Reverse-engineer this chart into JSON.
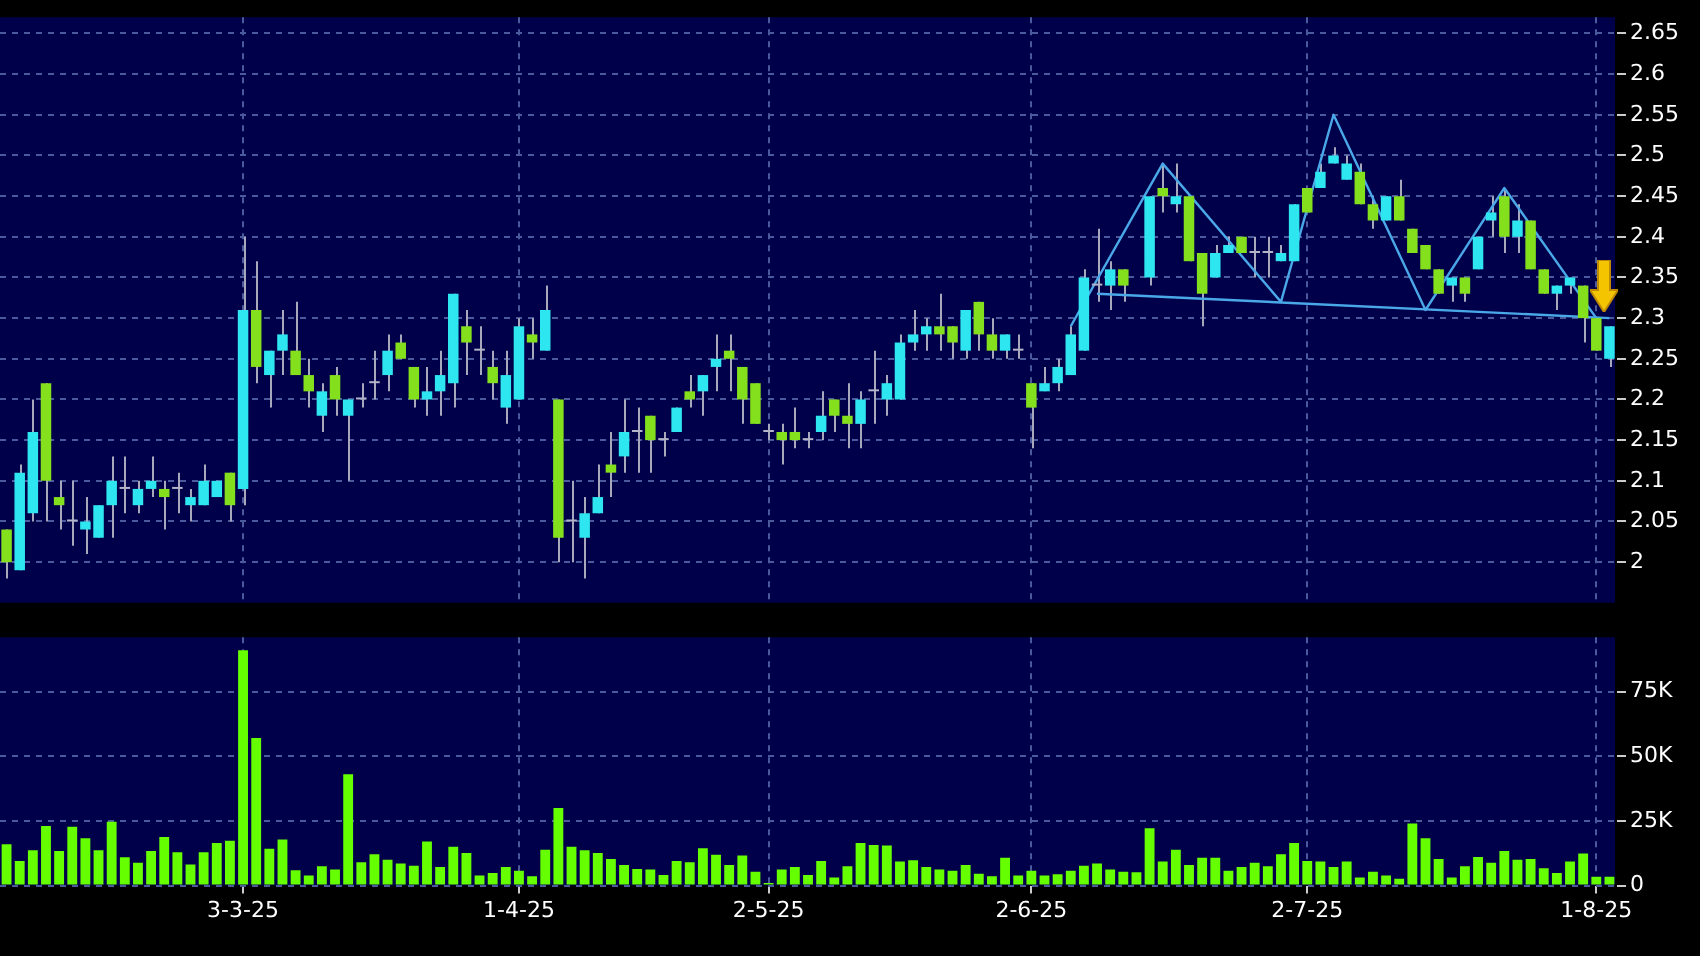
{
  "chart_data": [
    {
      "type": "candlestick",
      "categories": [
        null,
        null,
        null,
        null,
        null,
        null,
        null,
        null,
        null,
        null,
        null,
        null,
        null,
        null,
        null,
        null,
        null,
        null,
        null,
        null,
        null,
        null,
        null,
        null,
        null,
        null,
        null,
        null,
        null,
        null,
        null,
        null,
        null,
        null,
        null,
        null,
        null,
        null,
        null,
        null,
        null,
        null,
        null,
        null,
        null,
        null,
        null,
        null,
        null,
        null,
        null,
        null,
        null,
        null,
        null,
        null,
        null,
        null,
        null,
        null,
        null,
        null,
        null,
        null,
        null,
        null,
        null,
        null,
        null,
        null,
        null,
        null,
        null,
        null,
        null,
        null,
        null,
        null,
        null,
        null,
        null,
        null,
        null,
        null,
        null,
        null,
        null,
        null,
        null,
        null,
        null,
        null,
        null,
        null,
        null,
        null,
        null,
        null,
        null,
        null,
        null,
        null,
        null,
        null,
        null,
        null,
        null,
        null,
        null,
        null,
        null,
        null,
        null,
        null,
        null,
        null,
        null,
        null,
        null,
        null,
        null,
        null,
        null
      ],
      "ohlc": [
        [
          2.04,
          2.04,
          1.98,
          2.0
        ],
        [
          1.99,
          2.12,
          1.99,
          2.11
        ],
        [
          2.06,
          2.2,
          2.05,
          2.16
        ],
        [
          2.22,
          2.22,
          2.05,
          2.1
        ],
        [
          2.08,
          2.1,
          2.04,
          2.07
        ],
        [
          2.05,
          2.1,
          2.02,
          2.05
        ],
        [
          2.04,
          2.08,
          2.01,
          2.05
        ],
        [
          2.03,
          2.07,
          2.03,
          2.07
        ],
        [
          2.07,
          2.13,
          2.03,
          2.1
        ],
        [
          2.09,
          2.13,
          2.06,
          2.09
        ],
        [
          2.07,
          2.1,
          2.06,
          2.09
        ],
        [
          2.09,
          2.13,
          2.08,
          2.1
        ],
        [
          2.09,
          2.1,
          2.04,
          2.08
        ],
        [
          2.09,
          2.11,
          2.06,
          2.09
        ],
        [
          2.07,
          2.09,
          2.05,
          2.08
        ],
        [
          2.07,
          2.12,
          2.07,
          2.1
        ],
        [
          2.08,
          2.1,
          2.08,
          2.1
        ],
        [
          2.11,
          2.11,
          2.05,
          2.07
        ],
        [
          2.09,
          2.4,
          2.07,
          2.31
        ],
        [
          2.31,
          2.37,
          2.22,
          2.24
        ],
        [
          2.23,
          2.26,
          2.19,
          2.26
        ],
        [
          2.26,
          2.31,
          2.23,
          2.28
        ],
        [
          2.26,
          2.32,
          2.23,
          2.23
        ],
        [
          2.23,
          2.25,
          2.19,
          2.21
        ],
        [
          2.18,
          2.22,
          2.16,
          2.21
        ],
        [
          2.23,
          2.24,
          2.18,
          2.2
        ],
        [
          2.18,
          2.2,
          2.1,
          2.2
        ],
        [
          2.2,
          2.22,
          2.19,
          2.2
        ],
        [
          2.22,
          2.26,
          2.2,
          2.22
        ],
        [
          2.23,
          2.28,
          2.21,
          2.26
        ],
        [
          2.27,
          2.28,
          2.25,
          2.25
        ],
        [
          2.24,
          2.24,
          2.19,
          2.2
        ],
        [
          2.2,
          2.24,
          2.18,
          2.21
        ],
        [
          2.21,
          2.26,
          2.18,
          2.23
        ],
        [
          2.22,
          2.33,
          2.19,
          2.33
        ],
        [
          2.29,
          2.31,
          2.23,
          2.27
        ],
        [
          2.26,
          2.29,
          2.23,
          2.26
        ],
        [
          2.24,
          2.26,
          2.2,
          2.22
        ],
        [
          2.19,
          2.26,
          2.17,
          2.23
        ],
        [
          2.2,
          2.3,
          2.2,
          2.29
        ],
        [
          2.28,
          2.3,
          2.25,
          2.27
        ],
        [
          2.26,
          2.34,
          2.26,
          2.31
        ],
        [
          2.2,
          2.2,
          2.0,
          2.03
        ],
        [
          2.05,
          2.1,
          2.0,
          2.05
        ],
        [
          2.03,
          2.08,
          1.98,
          2.06
        ],
        [
          2.06,
          2.12,
          2.06,
          2.08
        ],
        [
          2.12,
          2.16,
          2.08,
          2.11
        ],
        [
          2.13,
          2.2,
          2.11,
          2.16
        ],
        [
          2.16,
          2.19,
          2.11,
          2.16
        ],
        [
          2.18,
          2.18,
          2.11,
          2.15
        ],
        [
          2.15,
          2.16,
          2.13,
          2.15
        ],
        [
          2.16,
          2.19,
          2.16,
          2.19
        ],
        [
          2.21,
          2.23,
          2.19,
          2.2
        ],
        [
          2.21,
          2.23,
          2.18,
          2.23
        ],
        [
          2.24,
          2.28,
          2.21,
          2.25
        ],
        [
          2.26,
          2.28,
          2.21,
          2.25
        ],
        [
          2.24,
          2.24,
          2.17,
          2.2
        ],
        [
          2.22,
          2.22,
          2.17,
          2.17
        ],
        [
          2.16,
          2.17,
          2.15,
          2.16
        ],
        [
          2.16,
          2.17,
          2.12,
          2.15
        ],
        [
          2.16,
          2.19,
          2.14,
          2.15
        ],
        [
          2.15,
          2.16,
          2.14,
          2.15
        ],
        [
          2.16,
          2.21,
          2.15,
          2.18
        ],
        [
          2.2,
          2.2,
          2.16,
          2.18
        ],
        [
          2.18,
          2.22,
          2.14,
          2.17
        ],
        [
          2.17,
          2.21,
          2.14,
          2.2
        ],
        [
          2.21,
          2.26,
          2.17,
          2.21
        ],
        [
          2.2,
          2.23,
          2.18,
          2.22
        ],
        [
          2.2,
          2.28,
          2.2,
          2.27
        ],
        [
          2.27,
          2.31,
          2.26,
          2.28
        ],
        [
          2.28,
          2.3,
          2.26,
          2.29
        ],
        [
          2.29,
          2.33,
          2.26,
          2.28
        ],
        [
          2.29,
          2.29,
          2.25,
          2.27
        ],
        [
          2.26,
          2.31,
          2.25,
          2.31
        ],
        [
          2.32,
          2.32,
          2.26,
          2.28
        ],
        [
          2.28,
          2.3,
          2.25,
          2.26
        ],
        [
          2.26,
          2.28,
          2.25,
          2.28
        ],
        [
          2.26,
          2.28,
          2.25,
          2.26
        ],
        [
          2.22,
          2.22,
          2.14,
          2.19
        ],
        [
          2.21,
          2.24,
          2.21,
          2.22
        ],
        [
          2.22,
          2.25,
          2.21,
          2.24
        ],
        [
          2.23,
          2.29,
          2.23,
          2.28
        ],
        [
          2.26,
          2.36,
          2.26,
          2.35
        ],
        [
          2.34,
          2.41,
          2.32,
          2.34
        ],
        [
          2.34,
          2.37,
          2.31,
          2.36
        ],
        [
          2.36,
          2.36,
          2.32,
          2.34
        ],
        null,
        [
          2.35,
          2.45,
          2.34,
          2.45
        ],
        [
          2.46,
          2.49,
          2.43,
          2.45
        ],
        [
          2.44,
          2.49,
          2.43,
          2.45
        ],
        [
          2.45,
          2.45,
          2.37,
          2.37
        ],
        [
          2.38,
          2.38,
          2.29,
          2.33
        ],
        [
          2.35,
          2.39,
          2.35,
          2.38
        ],
        [
          2.38,
          2.4,
          2.38,
          2.39
        ],
        [
          2.4,
          2.4,
          2.38,
          2.38
        ],
        [
          2.38,
          2.4,
          2.35,
          2.38
        ],
        [
          2.38,
          2.4,
          2.35,
          2.38
        ],
        [
          2.37,
          2.39,
          2.37,
          2.38
        ],
        [
          2.37,
          2.44,
          2.37,
          2.44
        ],
        [
          2.46,
          2.46,
          2.43,
          2.43
        ],
        [
          2.46,
          2.49,
          2.46,
          2.48
        ],
        [
          2.49,
          2.51,
          2.49,
          2.5
        ],
        [
          2.47,
          2.5,
          2.47,
          2.49
        ],
        [
          2.48,
          2.49,
          2.44,
          2.44
        ],
        [
          2.44,
          2.45,
          2.41,
          2.42
        ],
        [
          2.42,
          2.45,
          2.42,
          2.45
        ],
        [
          2.45,
          2.47,
          2.42,
          2.42
        ],
        [
          2.41,
          2.41,
          2.38,
          2.38
        ],
        [
          2.39,
          2.39,
          2.36,
          2.36
        ],
        [
          2.36,
          2.36,
          2.33,
          2.33
        ],
        [
          2.34,
          2.35,
          2.32,
          2.35
        ],
        [
          2.35,
          2.35,
          2.32,
          2.33
        ],
        [
          2.36,
          2.4,
          2.36,
          2.4
        ],
        [
          2.42,
          2.45,
          2.4,
          2.43
        ],
        [
          2.45,
          2.46,
          2.38,
          2.4
        ],
        [
          2.4,
          2.44,
          2.38,
          2.42
        ],
        [
          2.42,
          2.42,
          2.36,
          2.36
        ],
        [
          2.36,
          2.36,
          2.33,
          2.33
        ],
        [
          2.33,
          2.34,
          2.31,
          2.34
        ],
        [
          2.34,
          2.35,
          2.33,
          2.35
        ],
        [
          2.34,
          2.34,
          2.27,
          2.3
        ],
        [
          2.3,
          2.3,
          2.26,
          2.26
        ],
        [
          2.25,
          2.29,
          2.24,
          2.29
        ]
      ],
      "colors": [
        "#84e01c",
        "#2de6f0",
        "#2de6f0",
        "#84e01c",
        "#84e01c",
        "#b4b4c8",
        "#2de6f0",
        "#2de6f0",
        "#2de6f0",
        "#b4b4c8",
        "#2de6f0",
        "#2de6f0",
        "#84e01c",
        "#b4b4c8",
        "#2de6f0",
        "#2de6f0",
        "#2de6f0",
        "#84e01c",
        "#2de6f0",
        "#84e01c",
        "#2de6f0",
        "#2de6f0",
        "#84e01c",
        "#84e01c",
        "#2de6f0",
        "#84e01c",
        "#2de6f0",
        "#b4b4c8",
        "#b4b4c8",
        "#2de6f0",
        "#84e01c",
        "#84e01c",
        "#2de6f0",
        "#2de6f0",
        "#2de6f0",
        "#84e01c",
        "#b4b4c8",
        "#84e01c",
        "#2de6f0",
        "#2de6f0",
        "#84e01c",
        "#2de6f0",
        "#84e01c",
        "#b4b4c8",
        "#2de6f0",
        "#2de6f0",
        "#84e01c",
        "#2de6f0",
        "#b4b4c8",
        "#84e01c",
        "#b4b4c8",
        "#2de6f0",
        "#84e01c",
        "#2de6f0",
        "#2de6f0",
        "#84e01c",
        "#84e01c",
        "#84e01c",
        "#b4b4c8",
        "#84e01c",
        "#84e01c",
        "#b4b4c8",
        "#2de6f0",
        "#84e01c",
        "#84e01c",
        "#2de6f0",
        "#b4b4c8",
        "#2de6f0",
        "#2de6f0",
        "#2de6f0",
        "#2de6f0",
        "#84e01c",
        "#84e01c",
        "#2de6f0",
        "#84e01c",
        "#84e01c",
        "#2de6f0",
        "#b4b4c8",
        "#84e01c",
        "#2de6f0",
        "#2de6f0",
        "#2de6f0",
        "#2de6f0",
        "#b4b4c8",
        "#2de6f0",
        "#84e01c",
        null,
        "#2de6f0",
        "#84e01c",
        "#2de6f0",
        "#84e01c",
        "#84e01c",
        "#2de6f0",
        "#2de6f0",
        "#84e01c",
        "#b4b4c8",
        "#b4b4c8",
        "#2de6f0",
        "#2de6f0",
        "#84e01c",
        "#2de6f0",
        "#2de6f0",
        "#2de6f0",
        "#84e01c",
        "#84e01c",
        "#2de6f0",
        "#84e01c",
        "#84e01c",
        "#84e01c",
        "#84e01c",
        "#2de6f0",
        "#84e01c",
        "#2de6f0",
        "#2de6f0",
        "#84e01c",
        "#2de6f0",
        "#84e01c",
        "#84e01c",
        "#2de6f0",
        "#2de6f0",
        "#84e01c",
        "#84e01c",
        "#2de6f0"
      ],
      "series": [
        {
          "type": "line",
          "color": "#4aa8e8",
          "values": [
            null,
            null,
            null,
            null,
            null,
            null,
            null,
            null,
            null,
            null,
            null,
            null,
            null,
            null,
            null,
            null,
            null,
            null,
            null,
            null,
            null,
            null,
            null,
            null,
            null,
            null,
            null,
            null,
            null,
            null,
            null,
            null,
            null,
            null,
            null,
            null,
            null,
            null,
            null,
            null,
            null,
            null,
            null,
            null,
            null,
            null,
            null,
            null,
            null,
            null,
            null,
            null,
            null,
            null,
            null,
            null,
            null,
            null,
            null,
            null,
            null,
            null,
            null,
            null,
            null,
            null,
            null,
            null,
            null,
            null,
            null,
            null,
            null,
            null,
            null,
            null,
            null,
            null,
            null,
            null,
            null,
            2.29,
            null,
            null,
            null,
            null,
            null,
            null,
            2.49,
            null,
            null,
            null,
            null,
            null,
            null,
            null,
            null,
            2.32,
            null,
            null,
            null,
            2.55,
            null,
            null,
            null,
            null,
            null,
            null,
            2.31,
            null,
            null,
            null,
            null,
            null,
            2.46,
            null,
            null,
            null,
            null,
            null,
            null,
            2.3,
            null
          ]
        },
        {
          "type": "line",
          "color": "#4aa8e8",
          "values": [
            null,
            null,
            null,
            null,
            null,
            null,
            null,
            null,
            null,
            null,
            null,
            null,
            null,
            null,
            null,
            null,
            null,
            null,
            null,
            null,
            null,
            null,
            null,
            null,
            null,
            null,
            null,
            null,
            null,
            null,
            null,
            null,
            null,
            null,
            null,
            null,
            null,
            null,
            null,
            null,
            null,
            null,
            null,
            null,
            null,
            null,
            null,
            null,
            null,
            null,
            null,
            null,
            null,
            null,
            null,
            null,
            null,
            null,
            null,
            null,
            null,
            null,
            null,
            null,
            null,
            null,
            null,
            null,
            null,
            null,
            null,
            null,
            null,
            null,
            null,
            null,
            null,
            null,
            null,
            null,
            null,
            null,
            null,
            2.33,
            null,
            null,
            null,
            null,
            null,
            null,
            null,
            null,
            null,
            null,
            null,
            null,
            null,
            null,
            null,
            null,
            null,
            null,
            null,
            null,
            null,
            null,
            null,
            null,
            null,
            null,
            null,
            null,
            null,
            null,
            null,
            null,
            null,
            null,
            null,
            null,
            null,
            null,
            2.3
          ]
        }
      ],
      "ylim": [
        1.95,
        2.67
      ],
      "yticks": [
        2,
        2.05,
        2.1,
        2.15,
        2.2,
        2.25,
        2.3,
        2.35,
        2.4,
        2.45,
        2.5,
        2.55,
        2.6,
        2.65
      ],
      "grid": true,
      "tick_labels": "y"
    },
    {
      "type": "bar",
      "categories": [
        null,
        null,
        null,
        null,
        null,
        null,
        null,
        null,
        null,
        null,
        null,
        null,
        null,
        null,
        null,
        null,
        null,
        null,
        "3-3-25",
        null,
        null,
        null,
        null,
        null,
        null,
        null,
        null,
        null,
        null,
        null,
        null,
        null,
        null,
        null,
        null,
        null,
        null,
        null,
        null,
        "1-4-25",
        null,
        null,
        null,
        null,
        null,
        null,
        null,
        null,
        null,
        null,
        null,
        null,
        null,
        null,
        null,
        null,
        null,
        null,
        "2-5-25",
        null,
        null,
        null,
        null,
        null,
        null,
        null,
        null,
        null,
        null,
        null,
        null,
        null,
        null,
        null,
        null,
        null,
        null,
        null,
        "2-6-25",
        null,
        null,
        null,
        null,
        null,
        null,
        null,
        null,
        null,
        null,
        null,
        null,
        null,
        null,
        null,
        null,
        null,
        null,
        null,
        null,
        "2-7-25",
        null,
        null,
        null,
        null,
        null,
        null,
        null,
        null,
        null,
        null,
        null,
        null,
        null,
        null,
        null,
        null,
        null,
        null,
        null,
        null,
        null,
        "1-8-25",
        null
      ],
      "values": [
        16000,
        9500,
        13700,
        23000,
        13400,
        22700,
        18300,
        13700,
        24700,
        11000,
        8800,
        13400,
        18800,
        12900,
        8200,
        12900,
        16500,
        17300,
        91000,
        57000,
        14200,
        17800,
        5900,
        3900,
        7500,
        6200,
        43000,
        9000,
        12100,
        10000,
        8500,
        7700,
        17000,
        7200,
        15000,
        12600,
        3900,
        4900,
        7200,
        5700,
        3600,
        13900,
        30000,
        15000,
        13700,
        12600,
        10300,
        8000,
        6400,
        6200,
        4100,
        9500,
        9000,
        14400,
        11900,
        8000,
        11600,
        5400,
        1000,
        6200,
        7200,
        4100,
        9500,
        3100,
        7500,
        16500,
        15700,
        15500,
        9300,
        9800,
        7200,
        6200,
        5700,
        8000,
        4600,
        3600,
        10800,
        3900,
        5700,
        3900,
        4400,
        5700,
        7700,
        8500,
        6200,
        5400,
        5200,
        22200,
        9300,
        13900,
        8000,
        10800,
        10800,
        5700,
        7200,
        8800,
        7500,
        12100,
        16500,
        9500,
        9300,
        7200,
        9300,
        3100,
        5400,
        3900,
        2600,
        24000,
        18300,
        10300,
        3100,
        7500,
        11100,
        8800,
        13400,
        10000,
        10300,
        6700,
        4900,
        9300,
        12400,
        3400,
        3400
      ],
      "color": "#66ff00",
      "ylim": [
        0,
        96000
      ],
      "yticks": [
        0,
        {
          "value": 25000,
          "label": "25K"
        },
        {
          "value": 50000,
          "label": "50K"
        },
        {
          "value": 75000,
          "label": "75K"
        }
      ],
      "grid": true
    }
  ]
}
